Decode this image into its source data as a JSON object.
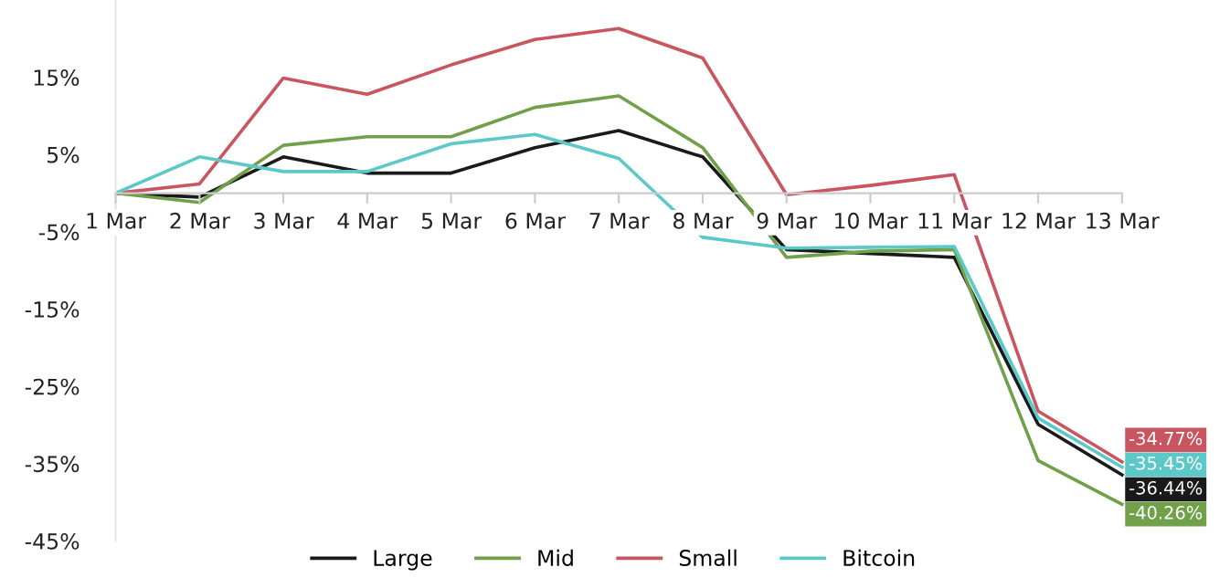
{
  "chart_data": {
    "type": "line",
    "categories": [
      "1 Mar",
      "2 Mar",
      "3 Mar",
      "4 Mar",
      "5 Mar",
      "6 Mar",
      "7 Mar",
      "8 Mar",
      "9 Mar",
      "10 Mar",
      "11 Mar",
      "12 Mar",
      "13 Mar"
    ],
    "series": [
      {
        "name": "Large",
        "color": "#1a1a1a",
        "values": [
          0,
          -0.5,
          4.7,
          2.6,
          2.6,
          5.9,
          8.1,
          4.7,
          -7.3,
          -7.8,
          -8.3,
          -29.9,
          -36.44
        ],
        "value_labels": [
          null,
          null,
          null,
          null,
          null,
          null,
          null,
          null,
          null,
          null,
          null,
          null,
          "-36.44%"
        ]
      },
      {
        "name": "Mid",
        "color": "#70a04a",
        "values": [
          0,
          -1.2,
          6.2,
          7.3,
          7.3,
          11.1,
          12.6,
          5.9,
          -8.3,
          -7.5,
          -7.3,
          -34.6,
          -40.26
        ],
        "value_labels": [
          null,
          null,
          null,
          null,
          null,
          null,
          null,
          null,
          null,
          null,
          null,
          null,
          "-40.26%"
        ]
      },
      {
        "name": "Small",
        "color": "#c8555f",
        "values": [
          0,
          1.2,
          14.9,
          12.8,
          16.6,
          19.9,
          21.3,
          17.5,
          -0.2,
          1.0,
          2.4,
          -28.2,
          -34.77
        ],
        "value_labels": [
          null,
          null,
          null,
          null,
          null,
          null,
          null,
          null,
          null,
          null,
          null,
          null,
          "-34.77%"
        ]
      },
      {
        "name": "Bitcoin",
        "color": "#5cc8c8",
        "values": [
          0,
          4.7,
          2.8,
          2.8,
          6.4,
          7.6,
          4.5,
          -5.7,
          -7.1,
          -7.0,
          -6.9,
          -29.1,
          -35.45
        ],
        "value_labels": [
          null,
          null,
          null,
          null,
          null,
          null,
          null,
          null,
          null,
          null,
          null,
          null,
          "-35.45%"
        ]
      }
    ],
    "ylim": [
      -45,
      25
    ],
    "yticks": [
      {
        "value": 15,
        "label": "15%"
      },
      {
        "value": 5,
        "label": "5%"
      },
      {
        "value": -5,
        "label": "-5%"
      },
      {
        "value": -15,
        "label": "-15%"
      },
      {
        "value": -25,
        "label": "-25%"
      },
      {
        "value": -35,
        "label": "-35%"
      },
      {
        "value": -45,
        "label": "-45%"
      }
    ],
    "grid": false,
    "legend": "bottom",
    "line_style": "solid",
    "marker": "none"
  }
}
